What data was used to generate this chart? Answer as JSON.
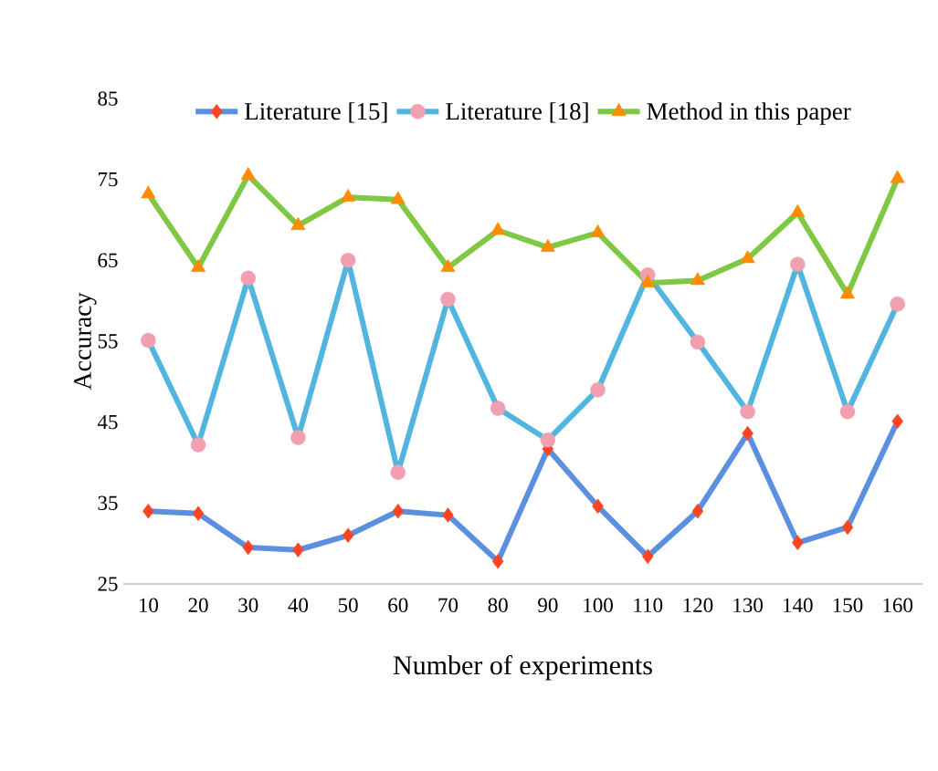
{
  "chart_data": {
    "type": "line",
    "xlabel": "Number of experiments",
    "ylabel": "Accuracy",
    "categories": [
      "10",
      "20",
      "30",
      "40",
      "50",
      "60",
      "70",
      "80",
      "90",
      "100",
      "110",
      "120",
      "130",
      "140",
      "150",
      "160"
    ],
    "series": [
      {
        "name": "Literature [15]",
        "color": "#5b8fe0",
        "marker": "diamond",
        "values": [
          34.0,
          33.7,
          29.5,
          29.2,
          31.0,
          34.0,
          33.5,
          27.8,
          41.7,
          34.6,
          28.4,
          34.0,
          43.6,
          30.1,
          32.0,
          45.1
        ]
      },
      {
        "name": "Literature [18]",
        "color": "#52b5e0",
        "marker": "circle",
        "values": [
          55.1,
          42.2,
          62.8,
          43.1,
          65.0,
          38.8,
          60.2,
          46.7,
          42.8,
          49.0,
          63.2,
          54.9,
          46.3,
          64.5,
          46.3,
          59.6
        ]
      },
      {
        "name": "Method in this paper",
        "color": "#7ec843",
        "marker": "triangle",
        "values": [
          73.2,
          64.1,
          75.5,
          69.3,
          72.8,
          72.5,
          64.1,
          68.7,
          66.6,
          68.4,
          62.2,
          62.5,
          65.2,
          70.9,
          60.8,
          75.1
        ]
      }
    ],
    "ylim": [
      25,
      85
    ],
    "yticks": [
      25,
      35,
      45,
      55,
      65,
      75,
      85
    ],
    "grid": false,
    "legend": "top",
    "line_style": "solid"
  }
}
